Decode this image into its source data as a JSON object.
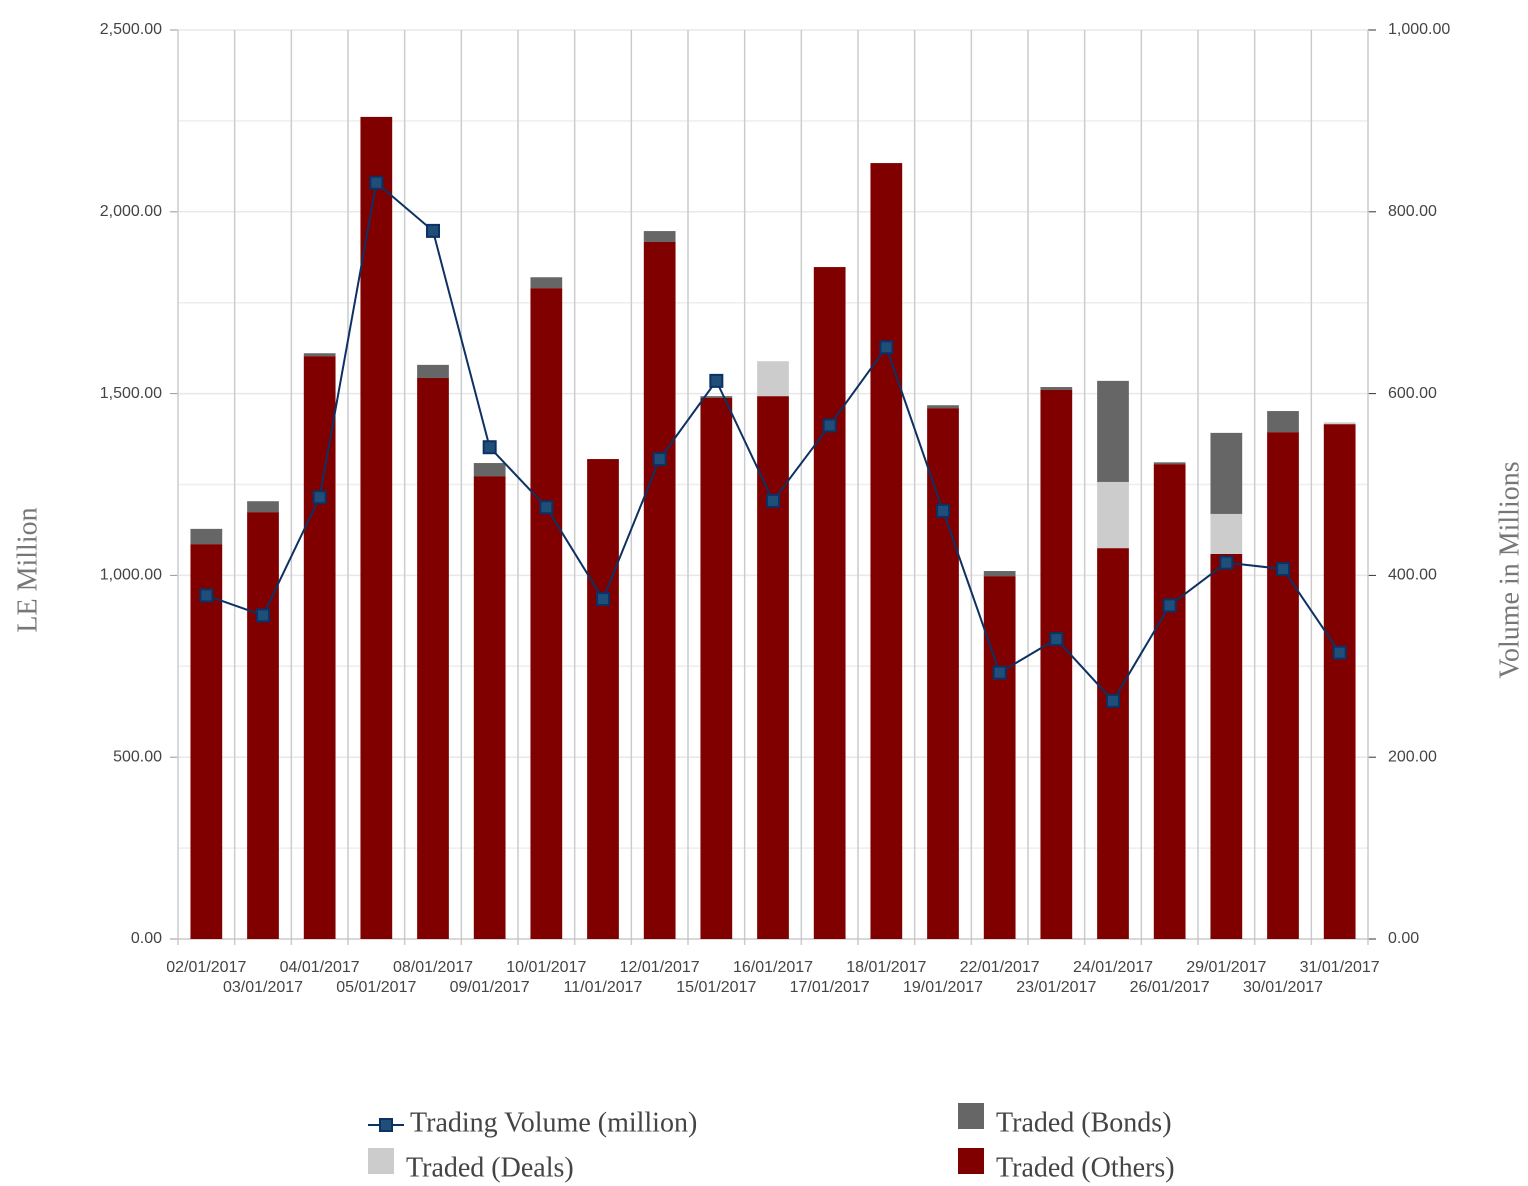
{
  "chart_data": {
    "type": "bar",
    "y_label": "LE Million",
    "y2_label": "Volume in Millions",
    "categories": [
      "02/01/2017",
      "03/01/2017",
      "04/01/2017",
      "05/01/2017",
      "08/01/2017",
      "09/01/2017",
      "10/01/2017",
      "11/01/2017",
      "12/01/2017",
      "15/01/2017",
      "16/01/2017",
      "17/01/2017",
      "18/01/2017",
      "19/01/2017",
      "22/01/2017",
      "23/01/2017",
      "24/01/2017",
      "26/01/2017",
      "29/01/2017",
      "30/01/2017",
      "31/01/2017"
    ],
    "stacked": true,
    "series": [
      {
        "name": "Trading Volume (million)",
        "type": "line",
        "axis": "y2",
        "color": "#0d3163",
        "values": [
          378,
          356,
          486,
          832,
          779,
          541,
          475,
          374,
          528,
          614,
          482,
          565,
          651,
          471,
          293,
          330,
          262,
          367,
          414,
          407,
          315
        ]
      },
      {
        "name": "Traded (Bonds)",
        "color": "#666666",
        "values": [
          42,
          30,
          8,
          null,
          36,
          36,
          30,
          null,
          30,
          5,
          null,
          null,
          null,
          8,
          14,
          8,
          278,
          5,
          223,
          58,
          null
        ]
      },
      {
        "name": "Traded (Deals)",
        "color": "#cccccc",
        "values": [
          null,
          null,
          null,
          null,
          null,
          null,
          null,
          null,
          null,
          null,
          96,
          null,
          null,
          null,
          null,
          null,
          182,
          null,
          110,
          null,
          5
        ]
      },
      {
        "name": "Traded (Others)",
        "color": "#800000",
        "values": [
          1086,
          1174,
          1603,
          2261,
          1543,
          1273,
          1790,
          1320,
          1917,
          1488,
          1493,
          1848,
          2134,
          1460,
          998,
          1510,
          1075,
          1306,
          1059,
          1394,
          1416
        ]
      }
    ],
    "ylim": [
      0,
      2500
    ],
    "yticks": [
      {
        "value": 0,
        "label": "0.00"
      },
      {
        "value": 500,
        "label": "500.00"
      },
      {
        "value": 1000,
        "label": "1,000.00"
      },
      {
        "value": 1500,
        "label": "1,500.00"
      },
      {
        "value": 2000,
        "label": "2,000.00"
      },
      {
        "value": 2500,
        "label": "2,500.00"
      }
    ],
    "y2lim": [
      0,
      1000
    ],
    "y2ticks": [
      {
        "value": 0,
        "label": "0.00"
      },
      {
        "value": 200,
        "label": "200.00"
      },
      {
        "value": 400,
        "label": "400.00"
      },
      {
        "value": 600,
        "label": "600.00"
      },
      {
        "value": 800,
        "label": "800.00"
      },
      {
        "value": 1000,
        "label": "1,000.00"
      }
    ],
    "grid": true,
    "legend": "bottom"
  }
}
